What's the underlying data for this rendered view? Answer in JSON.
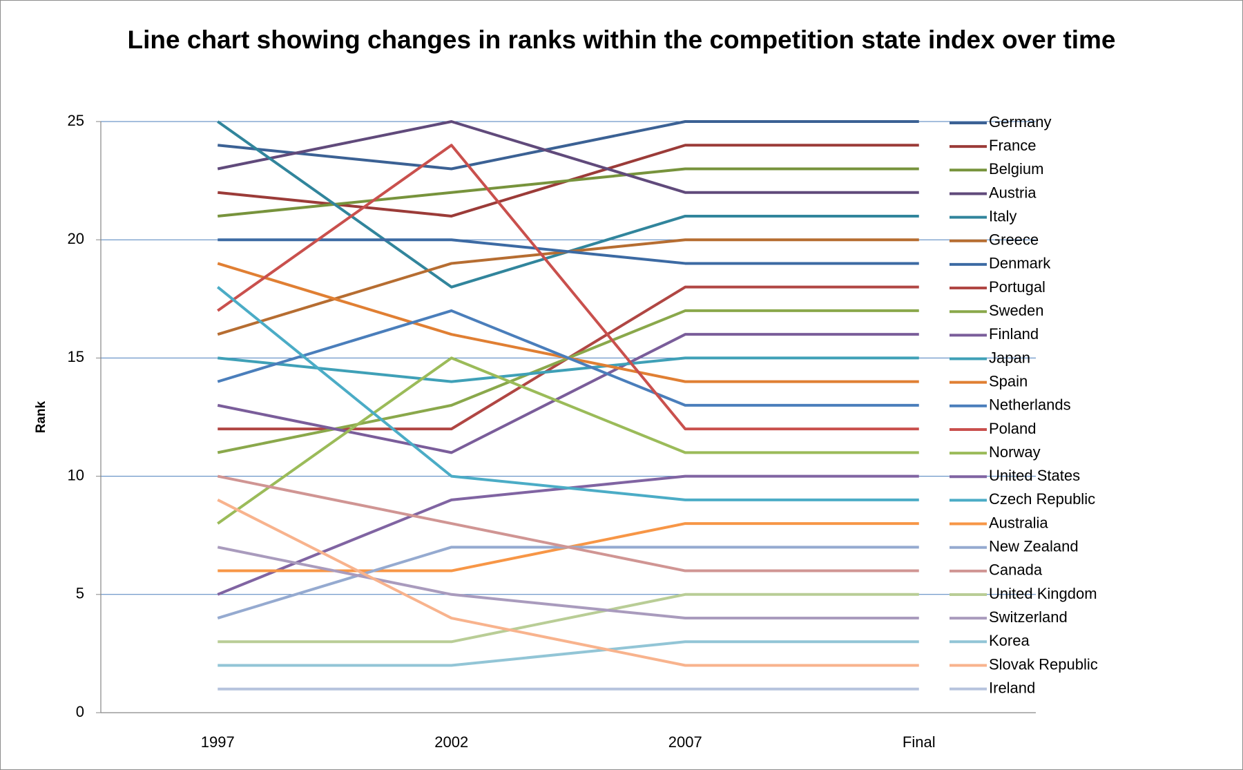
{
  "chart_data": {
    "type": "line",
    "title": "Line chart showing changes in ranks within the competition state index over time",
    "y_label": "Rank",
    "categories": [
      "1997",
      "2002",
      "2007",
      "Final"
    ],
    "ylim": [
      0,
      25
    ],
    "yticks": [
      0,
      5,
      10,
      15,
      20,
      25
    ],
    "grid": true,
    "legend": "right",
    "series": [
      {
        "name": "Germany",
        "color": "#3b6194",
        "values": [
          24,
          23,
          25,
          25
        ]
      },
      {
        "name": "France",
        "color": "#9b3b38",
        "values": [
          22,
          21,
          24,
          24
        ]
      },
      {
        "name": "Belgium",
        "color": "#77933c",
        "values": [
          21,
          22,
          23,
          23
        ]
      },
      {
        "name": "Austria",
        "color": "#604a7b",
        "values": [
          23,
          25,
          22,
          22
        ]
      },
      {
        "name": "Italy",
        "color": "#31859c",
        "values": [
          25,
          18,
          21,
          21
        ]
      },
      {
        "name": "Greece",
        "color": "#b66d31",
        "values": [
          16,
          19,
          20,
          20
        ]
      },
      {
        "name": "Denmark",
        "color": "#3c6aa3",
        "values": [
          20,
          20,
          19,
          19
        ]
      },
      {
        "name": "Portugal",
        "color": "#b04643",
        "values": [
          12,
          12,
          18,
          18
        ]
      },
      {
        "name": "Sweden",
        "color": "#8aa84b",
        "values": [
          11,
          13,
          17,
          17
        ]
      },
      {
        "name": "Finland",
        "color": "#7a5d9a",
        "values": [
          13,
          11,
          16,
          16
        ]
      },
      {
        "name": "Japan",
        "color": "#3fa0b7",
        "values": [
          15,
          14,
          15,
          15
        ]
      },
      {
        "name": "Spain",
        "color": "#e07f33",
        "values": [
          19,
          16,
          14,
          14
        ]
      },
      {
        "name": "Netherlands",
        "color": "#4a7ebb",
        "values": [
          14,
          17,
          13,
          13
        ]
      },
      {
        "name": "Poland",
        "color": "#c9504d",
        "values": [
          17,
          24,
          12,
          12
        ]
      },
      {
        "name": "Norway",
        "color": "#9bbb59",
        "values": [
          8,
          15,
          11,
          11
        ]
      },
      {
        "name": "United States",
        "color": "#8064a2",
        "values": [
          5,
          9,
          10,
          10
        ]
      },
      {
        "name": "Czech Republic",
        "color": "#4bacc6",
        "values": [
          18,
          10,
          9,
          9
        ]
      },
      {
        "name": "Australia",
        "color": "#f79646",
        "values": [
          6,
          6,
          8,
          8
        ]
      },
      {
        "name": "New Zealand",
        "color": "#95aad0",
        "values": [
          4,
          7,
          7,
          7
        ]
      },
      {
        "name": "Canada",
        "color": "#d09593",
        "values": [
          10,
          8,
          6,
          6
        ]
      },
      {
        "name": "United Kingdom",
        "color": "#b9cd96",
        "values": [
          3,
          3,
          5,
          5
        ]
      },
      {
        "name": "Switzerland",
        "color": "#a99bbd",
        "values": [
          7,
          5,
          4,
          4
        ]
      },
      {
        "name": "Korea",
        "color": "#92c5d6",
        "values": [
          2,
          2,
          3,
          3
        ]
      },
      {
        "name": "Slovak Republic",
        "color": "#f8b38d",
        "values": [
          9,
          4,
          2,
          2
        ]
      },
      {
        "name": "Ireland",
        "color": "#b6c3dd",
        "values": [
          1,
          1,
          1,
          1
        ]
      }
    ]
  }
}
